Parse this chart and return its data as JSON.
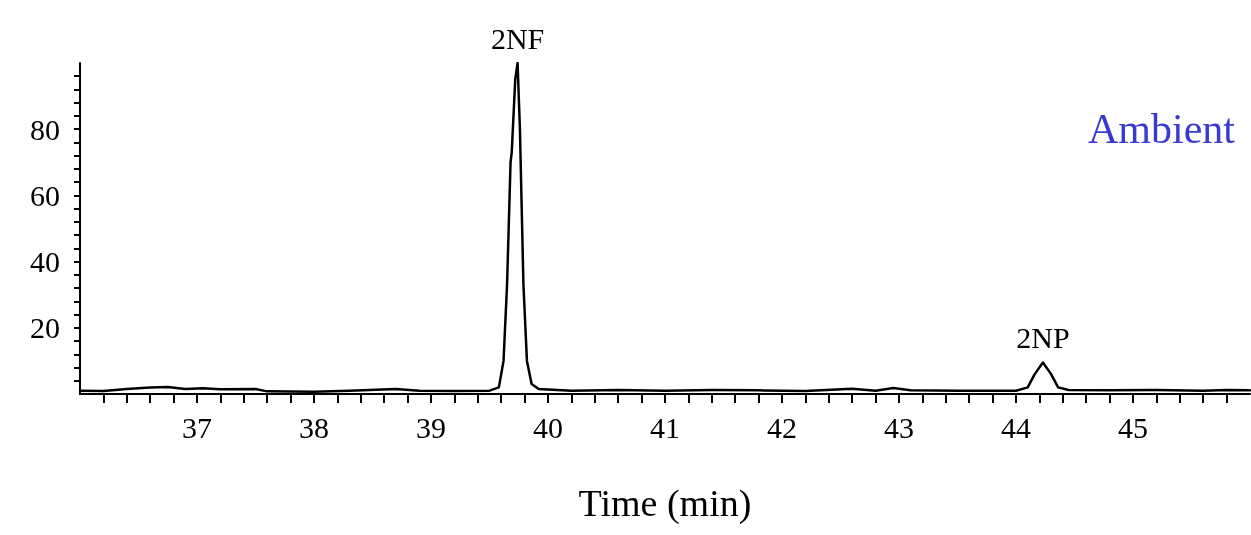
{
  "chart_data": {
    "type": "line",
    "xlabel": "Time (min)",
    "annotations": [
      {
        "text": "2NF",
        "x": 39.74,
        "y": 100
      },
      {
        "text": "2NP",
        "x": 44.23,
        "y": 9.5
      },
      "Ambient"
    ],
    "series": [
      {
        "color": "#000000",
        "x": [
          36.0,
          36.2,
          36.4,
          36.6,
          36.75,
          36.9,
          37.05,
          37.2,
          37.5,
          37.6,
          38.0,
          38.3,
          38.7,
          38.9,
          39.2,
          39.5,
          39.58,
          39.62,
          39.65,
          39.68,
          39.69,
          39.72,
          39.74,
          39.76,
          39.79,
          39.82,
          39.86,
          39.92,
          40.2,
          40.6,
          41.0,
          41.4,
          41.8,
          42.2,
          42.6,
          42.8,
          42.95,
          43.1,
          43.5,
          44.0,
          44.1,
          44.16,
          44.23,
          44.3,
          44.36,
          44.45,
          44.8,
          45.2,
          45.6,
          45.8,
          46.0
        ],
        "values": [
          1.0,
          0.9,
          1.5,
          2.0,
          2.1,
          1.5,
          1.7,
          1.4,
          1.5,
          0.8,
          0.7,
          1.0,
          1.5,
          1.0,
          0.9,
          1.0,
          2,
          10,
          33,
          70,
          73,
          95,
          100,
          80,
          33,
          10,
          3,
          1.5,
          1.0,
          1.2,
          1.0,
          1.2,
          1.1,
          0.9,
          1.6,
          1.0,
          1.8,
          1.1,
          1.0,
          1.0,
          2,
          6,
          9.5,
          6,
          2,
          1.2,
          1.1,
          1.2,
          1.0,
          1.2,
          1.1
        ]
      }
    ],
    "xlim": [
      36,
      46
    ],
    "xticks": [
      {
        "value": 36.2,
        "label": null
      },
      {
        "value": 36.4,
        "label": null
      },
      {
        "value": 36.6,
        "label": null
      },
      {
        "value": 36.8,
        "label": null
      },
      37,
      {
        "value": 37.2,
        "label": null
      },
      {
        "value": 37.4,
        "label": null
      },
      {
        "value": 37.6,
        "label": null
      },
      {
        "value": 37.8,
        "label": null
      },
      38,
      {
        "value": 38.2,
        "label": null
      },
      {
        "value": 38.4,
        "label": null
      },
      {
        "value": 38.6,
        "label": null
      },
      {
        "value": 38.8,
        "label": null
      },
      39,
      {
        "value": 39.2,
        "label": null
      },
      {
        "value": 39.4,
        "label": null
      },
      {
        "value": 39.6,
        "label": null
      },
      {
        "value": 39.8,
        "label": null
      },
      40,
      {
        "value": 40.2,
        "label": null
      },
      {
        "value": 40.4,
        "label": null
      },
      {
        "value": 40.6,
        "label": null
      },
      {
        "value": 40.8,
        "label": null
      },
      41,
      {
        "value": 41.2,
        "label": null
      },
      {
        "value": 41.4,
        "label": null
      },
      {
        "value": 41.6,
        "label": null
      },
      {
        "value": 41.8,
        "label": null
      },
      42,
      {
        "value": 42.2,
        "label": null
      },
      {
        "value": 42.4,
        "label": null
      },
      {
        "value": 42.6,
        "label": null
      },
      {
        "value": 42.8,
        "label": null
      },
      43,
      {
        "value": 43.2,
        "label": null
      },
      {
        "value": 43.4,
        "label": null
      },
      {
        "value": 43.6,
        "label": null
      },
      {
        "value": 43.8,
        "label": null
      },
      44,
      {
        "value": 44.2,
        "label": null
      },
      {
        "value": 44.4,
        "label": null
      },
      {
        "value": 44.6,
        "label": null
      },
      {
        "value": 44.8,
        "label": null
      },
      45,
      {
        "value": 45.2,
        "label": null
      },
      {
        "value": 45.4,
        "label": null
      },
      {
        "value": 45.6,
        "label": null
      },
      {
        "value": 45.8,
        "label": null
      }
    ],
    "ylim": [
      0,
      100
    ],
    "yticks": [
      {
        "value": 4,
        "label": null
      },
      {
        "value": 8,
        "label": null
      },
      {
        "value": 12,
        "label": null
      },
      {
        "value": 16,
        "label": null
      },
      20,
      {
        "value": 24,
        "label": null
      },
      {
        "value": 28,
        "label": null
      },
      {
        "value": 32,
        "label": null
      },
      {
        "value": 36,
        "label": null
      },
      40,
      {
        "value": 44,
        "label": null
      },
      {
        "value": 48,
        "label": null
      },
      {
        "value": 52,
        "label": null
      },
      {
        "value": 56,
        "label": null
      },
      60,
      {
        "value": 64,
        "label": null
      },
      {
        "value": 68,
        "label": null
      },
      {
        "value": 72,
        "label": null
      },
      {
        "value": 76,
        "label": null
      },
      80,
      {
        "value": 84,
        "label": null
      },
      {
        "value": 88,
        "label": null
      },
      {
        "value": 92,
        "label": null
      },
      {
        "value": 96,
        "label": null
      }
    ],
    "grid": false,
    "marker": "none",
    "line_style": "solid"
  }
}
